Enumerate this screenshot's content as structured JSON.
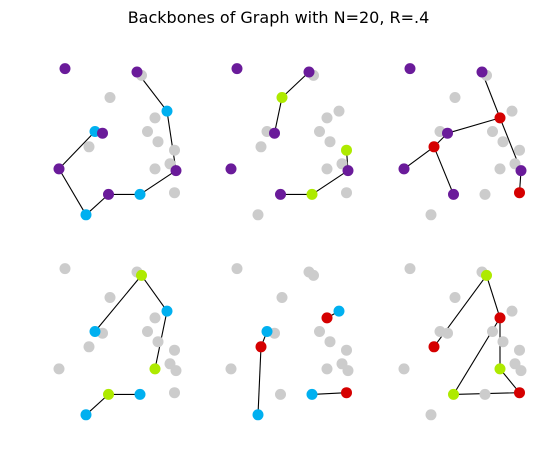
{
  "figure": {
    "title": "Backbones of Graph with N=20, R=.4"
  },
  "colors": {
    "inactive": "#cccccc",
    "purple": "#6a1b9a",
    "cyan": "#00b0f0",
    "lime": "#aeea00",
    "red": "#d50000",
    "edge": "#000000"
  },
  "chart_data": {
    "type": "scatter",
    "xlim": [
      0,
      1
    ],
    "ylim": [
      0,
      1
    ],
    "grid": false,
    "points": [
      [
        0.1,
        0.92
      ],
      [
        0.58,
        0.9
      ],
      [
        0.61,
        0.88
      ],
      [
        0.4,
        0.75
      ],
      [
        0.78,
        0.67
      ],
      [
        0.7,
        0.63
      ],
      [
        0.65,
        0.55
      ],
      [
        0.3,
        0.55
      ],
      [
        0.35,
        0.54
      ],
      [
        0.26,
        0.46
      ],
      [
        0.72,
        0.49
      ],
      [
        0.83,
        0.44
      ],
      [
        0.8,
        0.36
      ],
      [
        0.7,
        0.33
      ],
      [
        0.84,
        0.32
      ],
      [
        0.06,
        0.33
      ],
      [
        0.39,
        0.18
      ],
      [
        0.6,
        0.18
      ],
      [
        0.83,
        0.19
      ],
      [
        0.24,
        0.06
      ]
    ],
    "panels": [
      {
        "nodes": {
          "1": "purple",
          "4": "cyan",
          "7": "cyan",
          "8": "purple",
          "14": "purple",
          "15": "purple",
          "16": "purple",
          "17": "cyan",
          "0": "purple",
          "19": "cyan"
        },
        "edges": [
          [
            1,
            4
          ],
          [
            4,
            14
          ],
          [
            14,
            17
          ],
          [
            17,
            16
          ],
          [
            16,
            19
          ],
          [
            19,
            15
          ],
          [
            15,
            7
          ]
        ]
      },
      {
        "nodes": {
          "0": "purple",
          "1": "purple",
          "3": "lime",
          "8": "purple",
          "15": "purple",
          "11": "lime",
          "14": "purple",
          "16": "purple",
          "17": "lime"
        },
        "edges": [
          [
            1,
            3
          ],
          [
            3,
            8
          ],
          [
            16,
            17
          ],
          [
            17,
            14
          ],
          [
            14,
            11
          ]
        ]
      },
      {
        "nodes": {
          "0": "purple",
          "1": "purple",
          "5": "red",
          "8": "purple",
          "9": "red",
          "15": "purple",
          "16": "purple",
          "14": "purple",
          "18": "red"
        },
        "edges": [
          [
            1,
            5
          ],
          [
            5,
            8
          ],
          [
            8,
            9
          ],
          [
            9,
            15
          ],
          [
            9,
            16
          ],
          [
            5,
            14
          ],
          [
            14,
            18
          ]
        ]
      },
      {
        "nodes": {
          "2": "lime",
          "4": "cyan",
          "7": "cyan",
          "13": "lime",
          "16": "lime",
          "19": "cyan",
          "17": "cyan"
        },
        "edges": [
          [
            2,
            4
          ],
          [
            4,
            13
          ],
          [
            2,
            7
          ],
          [
            19,
            16
          ],
          [
            16,
            17
          ]
        ]
      },
      {
        "nodes": {
          "4": "cyan",
          "5": "red",
          "7": "cyan",
          "9": "red",
          "18": "red",
          "19": "cyan",
          "17": "cyan"
        },
        "edges": [
          [
            4,
            5
          ],
          [
            7,
            9
          ],
          [
            9,
            19
          ],
          [
            17,
            18
          ]
        ]
      },
      {
        "nodes": {
          "2": "lime",
          "5": "red",
          "13": "lime",
          "9": "red",
          "16": "lime",
          "18": "red"
        },
        "edges": [
          [
            2,
            5
          ],
          [
            5,
            13
          ],
          [
            2,
            9
          ],
          [
            5,
            16
          ],
          [
            16,
            18
          ],
          [
            13,
            18
          ]
        ]
      }
    ]
  }
}
